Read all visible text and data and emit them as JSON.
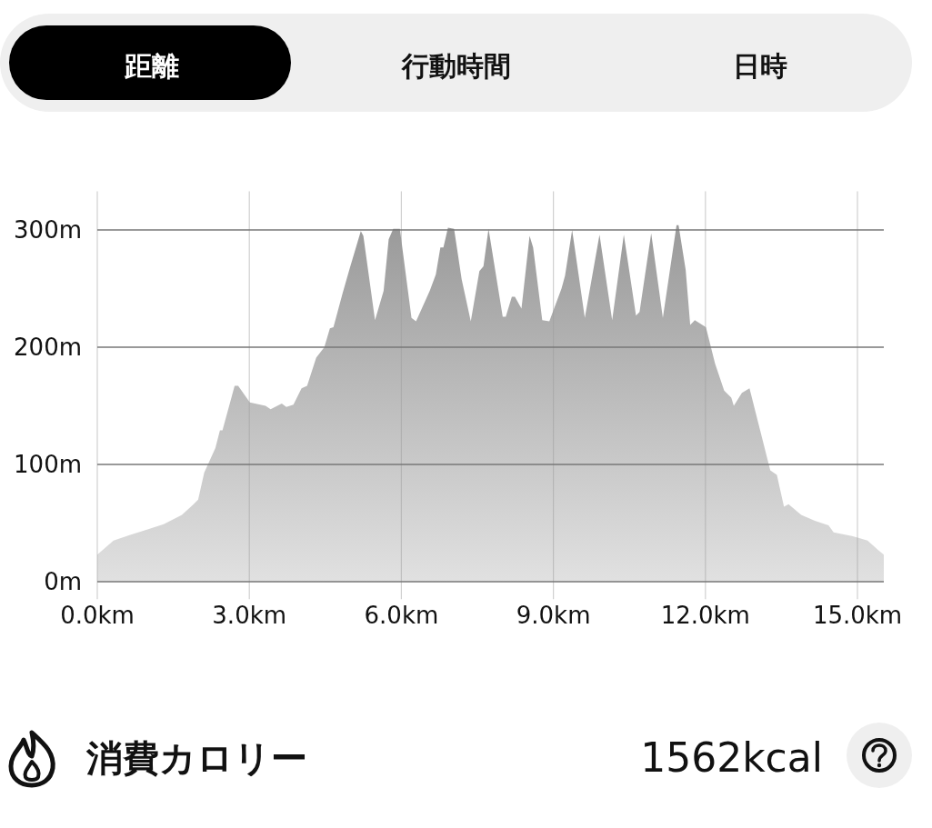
{
  "chart_data": [
    {
      "type": "other",
      "annotations": [
        "距離",
        "行動時間",
        "日時"
      ]
    },
    {
      "type": "area",
      "xlim": [
        0,
        15.52
      ],
      "ylim": [
        -15,
        333
      ],
      "xticks": [
        {
          "value": 0,
          "label": "0.0km"
        },
        {
          "value": 3,
          "label": "3.0km"
        },
        {
          "value": 6,
          "label": "6.0km"
        },
        {
          "value": 9,
          "label": "9.0km"
        },
        {
          "value": 12,
          "label": "12.0km"
        },
        {
          "value": 15,
          "label": "15.0km"
        }
      ],
      "yticks": [
        {
          "value": 0,
          "label": "0m"
        },
        {
          "value": 100,
          "label": "100m"
        },
        {
          "value": 200,
          "label": "200m"
        },
        {
          "value": 300,
          "label": "300m"
        }
      ],
      "grid": true,
      "series": [
        {
          "color": "#9a9a9a",
          "x": [
            0,
            0.32,
            0.65,
            0.95,
            1.31,
            1.67,
            1.9,
            1.99,
            2.11,
            2.33,
            2.42,
            2.47,
            2.71,
            2.78,
            3.01,
            3.32,
            3.42,
            3.64,
            3.73,
            3.87,
            4.03,
            4.14,
            4.32,
            4.48,
            4.59,
            4.66,
            4.84,
            4.98,
            5.2,
            5.25,
            5.48,
            5.65,
            5.75,
            5.84,
            5.97,
            6.2,
            6.29,
            6.56,
            6.68,
            6.77,
            6.83,
            6.92,
            7.04,
            7.19,
            7.37,
            7.54,
            7.62,
            7.72,
            8.0,
            8.06,
            8.18,
            8.24,
            8.37,
            8.53,
            8.6,
            8.78,
            8.92,
            9.16,
            9.23,
            9.37,
            9.62,
            9.91,
            10.16,
            10.39,
            10.63,
            10.7,
            10.93,
            11.16,
            11.43,
            11.47,
            11.61,
            11.7,
            11.79,
            12.01,
            12.19,
            12.37,
            12.51,
            12.56,
            12.72,
            12.87,
            13.08,
            13.28,
            13.41,
            13.55,
            13.64,
            13.89,
            14.16,
            14.43,
            14.53,
            14.89,
            15.05,
            15.2,
            15.41,
            15.52
          ],
          "values": [
            23,
            35,
            40,
            44,
            49,
            57,
            66,
            70,
            93,
            114,
            129,
            129,
            167,
            167,
            153,
            150,
            147,
            152,
            149,
            151,
            165,
            167,
            191,
            200,
            216,
            217,
            246,
            267,
            299,
            295,
            223,
            248,
            292,
            301,
            301,
            225,
            222,
            248,
            262,
            285,
            285,
            302,
            301,
            258,
            222,
            265,
            269,
            301,
            226,
            226,
            243,
            243,
            233,
            295,
            285,
            223,
            222,
            250,
            261,
            300,
            225,
            296,
            223,
            296,
            227,
            230,
            297,
            225,
            304,
            304,
            266,
            219,
            223,
            217,
            186,
            163,
            157,
            150,
            161,
            165,
            129,
            95,
            91,
            64,
            66,
            57,
            52,
            48,
            42,
            39,
            37,
            35,
            27,
            23
          ]
        }
      ]
    },
    {
      "type": "other",
      "annotations": [
        "消費カロリー",
        "1562kcal"
      ]
    }
  ]
}
